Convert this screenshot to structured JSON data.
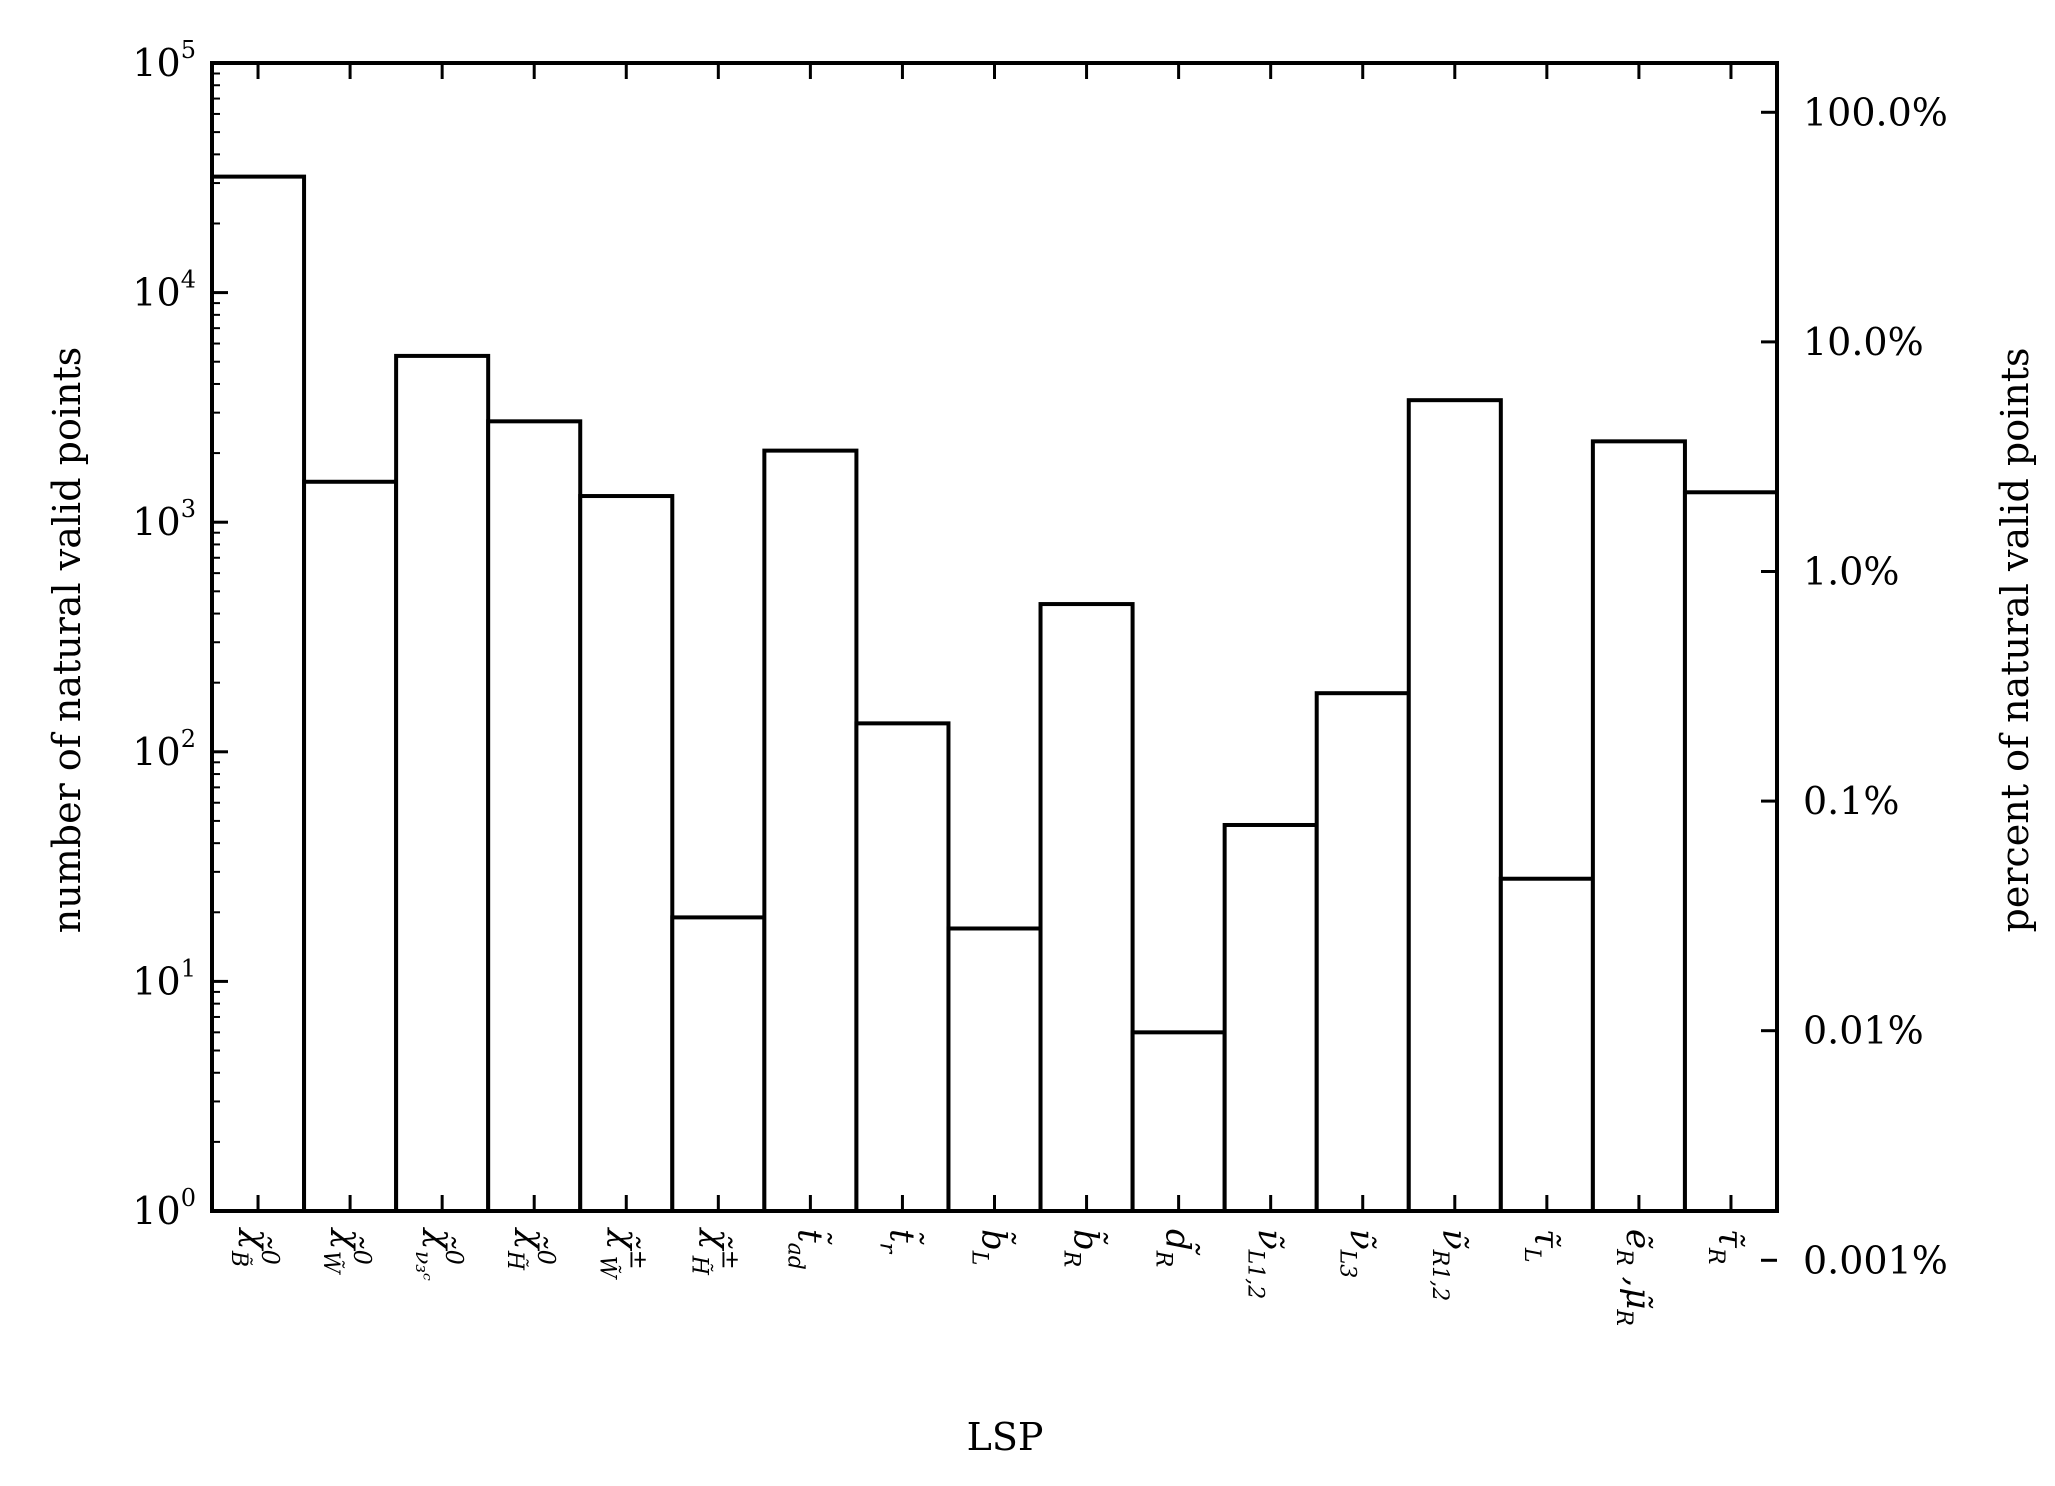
{
  "chart_data": {
    "type": "bar",
    "title": "",
    "xlabel": "LSP",
    "ylabel": "number of natural valid points",
    "ylabel_right": "percent of natural valid points",
    "y_scale": "log",
    "ylim": [
      1,
      100000
    ],
    "grid": false,
    "legend": "none",
    "bar_style": "step histogram, black outline, white fill",
    "y_ticks": [
      {
        "base": "10",
        "exp": "0"
      },
      {
        "base": "10",
        "exp": "1"
      },
      {
        "base": "10",
        "exp": "2"
      },
      {
        "base": "10",
        "exp": "3"
      },
      {
        "base": "10",
        "exp": "4"
      },
      {
        "base": "10",
        "exp": "5"
      }
    ],
    "right_ticks": [
      "0.001%",
      "0.01%",
      "0.1%",
      "1.0%",
      "10.0%",
      "100.0%"
    ],
    "right_tick_percent_values": [
      0.001,
      0.01,
      0.1,
      1.0,
      10.0,
      100.0
    ],
    "total_points_for_percent": 61000,
    "categories": [
      {
        "base": "χ̃",
        "sub": "B̃",
        "sup": "0"
      },
      {
        "base": "χ̃",
        "sub": "W̃",
        "sup": "0"
      },
      {
        "base": "χ̃",
        "sub": "ν₃ᶜ",
        "sup": "0"
      },
      {
        "base": "χ̃",
        "sub": "H̃",
        "sup": "0"
      },
      {
        "base": "χ̃",
        "sub": "W̃",
        "sup": "±"
      },
      {
        "base": "χ̃",
        "sub": "H̃",
        "sup": "±"
      },
      {
        "base": "t̃",
        "sub": "ad",
        "sup": ""
      },
      {
        "base": "t̃",
        "sub": "r",
        "sup": ""
      },
      {
        "base": "b̃",
        "sub": "L",
        "sup": ""
      },
      {
        "base": "b̃",
        "sub": "R",
        "sup": ""
      },
      {
        "base": "d̃",
        "sub": "R",
        "sup": ""
      },
      {
        "base": "ν̃",
        "sub": "L1,2",
        "sup": ""
      },
      {
        "base": "ν̃",
        "sub": "L3",
        "sup": ""
      },
      {
        "base": "ν̃",
        "sub": "R1,2",
        "sup": ""
      },
      {
        "base": "τ̃",
        "sub": "L",
        "sup": ""
      },
      {
        "base": "ẽ",
        "sub": "R",
        "sup": "",
        "extra": " ,μ̃",
        "extra_sub": "R"
      },
      {
        "base": "τ̃",
        "sub": "R",
        "sup": ""
      }
    ],
    "values": [
      32000,
      1500,
      5300,
      2750,
      1300,
      19,
      2050,
      133,
      17,
      440,
      6,
      48,
      180,
      3400,
      28,
      2250,
      1350
    ]
  }
}
